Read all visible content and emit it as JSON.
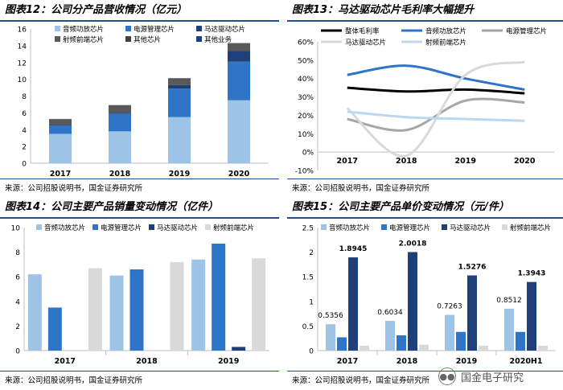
{
  "panels": [
    {
      "title": "图表12：公司分产品营收情况（亿元）",
      "source": "来源：公司招股说明书，国金证券研究所"
    },
    {
      "title": "图表13：马达驱动芯片毛利率大幅提升",
      "source": "来源：公司招股说明书，国金证券研究所"
    },
    {
      "title": "图表14：公司主要产品销量变动情况（亿件）",
      "source": "来源：公司招股说明书，国金证券研究所"
    },
    {
      "title": "图表15：公司主要产品单价变动情况（元/件）",
      "source": "来源：公司招股说明书，国金证券研究所"
    }
  ],
  "watermark": {
    "text": "国金电子研究",
    "icon": "wechat-icon"
  },
  "colors": {
    "light_blue": "#9dc3e6",
    "mid_blue": "#2e75c8",
    "dark_blue": "#1f3f78",
    "gray": "#595959",
    "light_gray": "#d9d9d9",
    "black": "#000000",
    "rule": "#1f4e96"
  },
  "chart_data": [
    {
      "type": "bar",
      "stacked": true,
      "categories": [
        "2017",
        "2018",
        "2019",
        "2020"
      ],
      "ylim": [
        0,
        16
      ],
      "yticks": [
        0,
        2,
        4,
        6,
        8,
        10,
        12,
        14,
        16
      ],
      "grid": false,
      "legend": "top",
      "series": [
        {
          "name": "音频功放芯片",
          "color": "#9dc3e6",
          "values": [
            3.5,
            3.8,
            5.5,
            7.5
          ]
        },
        {
          "name": "电源管理芯片",
          "color": "#2e75c8",
          "values": [
            1.0,
            2.1,
            3.4,
            4.6
          ]
        },
        {
          "name": "马达驱动芯片",
          "color": "#1f3f78",
          "values": [
            0.05,
            0.1,
            0.4,
            1.3
          ]
        },
        {
          "name": "射频前端芯片",
          "color": "#595959",
          "values": [
            0.7,
            0.9,
            0.8,
            0.8
          ]
        },
        {
          "name": "其他芯片",
          "color": "#404040",
          "values": [
            0.02,
            0.02,
            0.02,
            0.1
          ]
        },
        {
          "name": "其他业务",
          "color": "#1f3f78",
          "values": [
            0.01,
            0.01,
            0.02,
            0.02
          ]
        }
      ]
    },
    {
      "type": "line",
      "categories": [
        "2017",
        "2018",
        "2019",
        "2020"
      ],
      "ylim": [
        -10,
        60
      ],
      "yticks": [
        -10,
        0,
        10,
        20,
        30,
        40,
        50,
        60
      ],
      "ytick_format": "percent",
      "grid": false,
      "legend": "top",
      "series": [
        {
          "name": "整体毛利率",
          "color": "#000000",
          "values": [
            35,
            33,
            34,
            32
          ]
        },
        {
          "name": "音频功放芯片",
          "color": "#2e75c8",
          "values": [
            42,
            47,
            40,
            34
          ]
        },
        {
          "name": "电源管理芯片",
          "color": "#a6a6a6",
          "values": [
            18,
            12,
            28,
            27
          ]
        },
        {
          "name": "马达驱动芯片",
          "color": "#d9d9d9",
          "values": [
            24,
            -2,
            42,
            49
          ]
        },
        {
          "name": "射频前端芯片",
          "color": "#bdd7ee",
          "values": [
            22,
            19,
            18,
            17
          ]
        }
      ]
    },
    {
      "type": "bar",
      "stacked": false,
      "categories": [
        "2017",
        "2018",
        "2019"
      ],
      "ylim": [
        0,
        10
      ],
      "yticks": [
        0,
        2,
        4,
        6,
        8,
        10
      ],
      "grid": false,
      "legend": "top",
      "series": [
        {
          "name": "音频功放芯片",
          "color": "#9dc3e6",
          "values": [
            6.2,
            6.1,
            7.4
          ]
        },
        {
          "name": "电源管理芯片",
          "color": "#2e75c8",
          "values": [
            3.5,
            6.6,
            8.7
          ]
        },
        {
          "name": "马达驱动芯片",
          "color": "#1f3f78",
          "values": [
            0,
            0,
            0.3
          ]
        },
        {
          "name": "射频前端芯片",
          "color": "#d9d9d9",
          "values": [
            6.7,
            7.2,
            7.5
          ]
        }
      ]
    },
    {
      "type": "bar",
      "stacked": false,
      "categories": [
        "2017",
        "2018",
        "2019",
        "2020H1"
      ],
      "ylim": [
        0,
        2.5
      ],
      "yticks": [
        0,
        0.5,
        1,
        1.5,
        2,
        2.5
      ],
      "grid": false,
      "legend": "top",
      "series": [
        {
          "name": "音频功放芯片",
          "color": "#9dc3e6",
          "values": [
            0.5356,
            0.6034,
            0.7263,
            0.8512
          ],
          "labels": [
            "0.5356",
            "0.6034",
            "0.7263",
            "0.8512"
          ]
        },
        {
          "name": "电源管理芯片",
          "color": "#2e75c8",
          "values": [
            0.27,
            0.31,
            0.38,
            0.38
          ]
        },
        {
          "name": "马达驱动芯片",
          "color": "#1f3f78",
          "values": [
            1.8945,
            2.0018,
            1.5276,
            1.3943
          ],
          "labels": [
            "1.8945",
            "2.0018",
            "1.5276",
            "1.3943"
          ]
        },
        {
          "name": "射频前端芯片",
          "color": "#d9d9d9",
          "values": [
            0.1,
            0.12,
            0.1,
            0.1
          ]
        }
      ]
    }
  ]
}
